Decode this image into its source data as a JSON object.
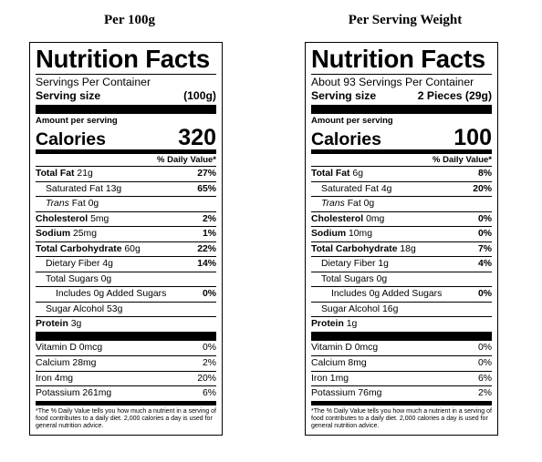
{
  "columns": [
    {
      "heading": "Per 100g",
      "title": "Nutrition Facts",
      "servings": "Servings Per Container",
      "serving_size_label": "Serving size",
      "serving_size_value": "(100g)",
      "amount_label": "Amount per serving",
      "calories_label": "Calories",
      "calories_value": "320",
      "dv_header": "% Daily Value*",
      "total_fat": {
        "label": "Total Fat",
        "amount": "21g",
        "dv": "27%"
      },
      "saturated_fat": {
        "label": "Saturated Fat",
        "amount": "13g",
        "dv": "65%"
      },
      "trans_fat": {
        "prefix": "Trans",
        "label": "Fat",
        "amount": "0g"
      },
      "cholesterol": {
        "label": "Cholesterol",
        "amount": "5mg",
        "dv": "2%"
      },
      "sodium": {
        "label": "Sodium",
        "amount": "25mg",
        "dv": "1%"
      },
      "total_carb": {
        "label": "Total Carbohydrate",
        "amount": "60g",
        "dv": "22%"
      },
      "fiber": {
        "label": "Dietary Fiber",
        "amount": "4g",
        "dv": "14%"
      },
      "total_sugars": {
        "label": "Total Sugars",
        "amount": "0g"
      },
      "added_sugars": {
        "label": "Includes 0g Added Sugars",
        "dv": "0%"
      },
      "sugar_alcohol": {
        "label": "Sugar Alcohol",
        "amount": "53g"
      },
      "protein": {
        "label": "Protein",
        "amount": "3g"
      },
      "vitamin_d": {
        "label": "Vitamin D 0mcg",
        "dv": "0%"
      },
      "calcium": {
        "label": "Calcium 28mg",
        "dv": "2%"
      },
      "iron": {
        "label": "Iron 4mg",
        "dv": "20%"
      },
      "potassium": {
        "label": "Potassium 261mg",
        "dv": "6%"
      },
      "footnote": "*The % Daily Value tells you how much a nutrient in a serving of food contributes to a daily diet. 2,000 calories a day is used for general nutrition advice."
    },
    {
      "heading": "Per Serving Weight",
      "title": "Nutrition Facts",
      "servings": "About 93 Servings Per Container",
      "serving_size_label": "Serving size",
      "serving_size_value": "2 Pieces (29g)",
      "amount_label": "Amount per serving",
      "calories_label": "Calories",
      "calories_value": "100",
      "dv_header": "% Daily Value*",
      "total_fat": {
        "label": "Total Fat",
        "amount": "6g",
        "dv": "8%"
      },
      "saturated_fat": {
        "label": "Saturated Fat",
        "amount": "4g",
        "dv": "20%"
      },
      "trans_fat": {
        "prefix": "Trans",
        "label": "Fat",
        "amount": "0g"
      },
      "cholesterol": {
        "label": "Cholesterol",
        "amount": "0mg",
        "dv": "0%"
      },
      "sodium": {
        "label": "Sodium",
        "amount": "10mg",
        "dv": "0%"
      },
      "total_carb": {
        "label": "Total Carbohydrate",
        "amount": "18g",
        "dv": "7%"
      },
      "fiber": {
        "label": "Dietary Fiber",
        "amount": "1g",
        "dv": "4%"
      },
      "total_sugars": {
        "label": "Total Sugars",
        "amount": "0g"
      },
      "added_sugars": {
        "label": "Includes 0g Added Sugars",
        "dv": "0%"
      },
      "sugar_alcohol": {
        "label": "Sugar Alcohol",
        "amount": "16g"
      },
      "protein": {
        "label": "Protein",
        "amount": "1g"
      },
      "vitamin_d": {
        "label": "Vitamin D 0mcg",
        "dv": "0%"
      },
      "calcium": {
        "label": "Calcium 8mg",
        "dv": "0%"
      },
      "iron": {
        "label": "Iron 1mg",
        "dv": "6%"
      },
      "potassium": {
        "label": "Potassium 76mg",
        "dv": "2%"
      },
      "footnote": "*The % Daily Value tells you how much a nutrient in a serving of food contributes to a daily diet. 2,000 calories a day is used for general nutrition advice."
    }
  ]
}
